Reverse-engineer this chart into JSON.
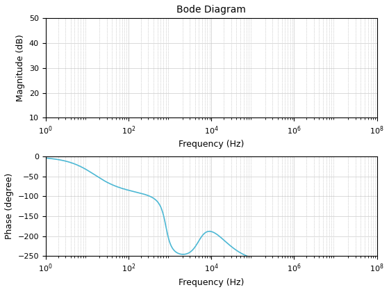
{
  "title": "Bode Diagram",
  "xlabel": "Frequency (Hz)",
  "ylabel_mag": "Magnitude (dB)",
  "ylabel_phase": "Phase (degree)",
  "freq_min": 1,
  "freq_max": 100000000.0,
  "mag_ylim": [
    10,
    50
  ],
  "phase_ylim": [
    -250,
    0
  ],
  "line_color": "#4db8d4",
  "line_width": 1.2,
  "bg_color": "#ffffff",
  "grid_color": "#aaaaaa",
  "grid_style": ":",
  "mag_yticks": [
    10,
    20,
    30,
    40,
    50
  ],
  "phase_yticks": [
    -250,
    -200,
    -150,
    -100,
    -50,
    0
  ],
  "xticks": [
    1,
    100,
    10000,
    1000000,
    100000000
  ],
  "xticklabels": [
    "10$^0$",
    "10$^2$",
    "10$^4$",
    "10$^6$",
    "10$^8$"
  ]
}
